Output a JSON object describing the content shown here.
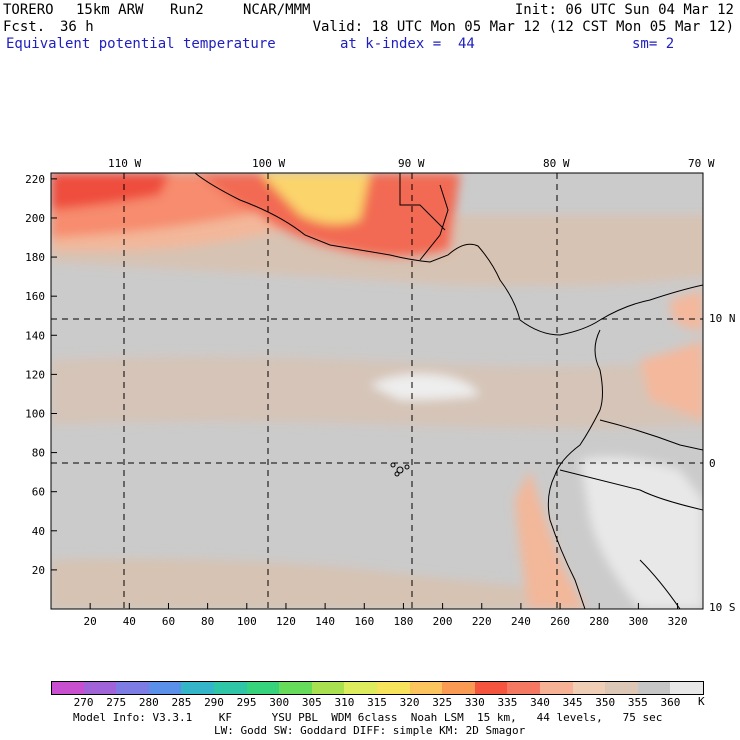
{
  "header": {
    "model": "TORERO",
    "resolution": "15km ARW",
    "run": "Run2",
    "org": "NCAR/MMM",
    "init": "Init: 06 UTC Sun 04 Mar 12",
    "fcst_label": "Fcst.",
    "fcst_hours": "36 h",
    "valid": "Valid: 18 UTC Mon 05 Mar 12 (12 CST Mon 05 Mar 12)"
  },
  "field": {
    "name": "Equivalent potential temperature",
    "level": "at k-index =  44",
    "smoothing": "sm= 2"
  },
  "map": {
    "lon_labels": [
      "110 W",
      "100 W",
      "90 W",
      "80 W",
      "70 W"
    ],
    "lat_labels": [
      "10 N",
      "0",
      "10 S"
    ],
    "x_ticks": [
      "20",
      "40",
      "60",
      "80",
      "100",
      "120",
      "140",
      "160",
      "180",
      "200",
      "220",
      "240",
      "260",
      "280",
      "300",
      "320"
    ],
    "y_ticks": [
      "220",
      "200",
      "180",
      "160",
      "140",
      "120",
      "100",
      "80",
      "60",
      "40",
      "20"
    ]
  },
  "colorbar": {
    "levels": [
      "270",
      "275",
      "280",
      "285",
      "290",
      "295",
      "300",
      "305",
      "310",
      "315",
      "320",
      "325",
      "330",
      "335",
      "340",
      "345",
      "350",
      "355",
      "360"
    ],
    "unit": "K",
    "colors": [
      "#c84fcf",
      "#a064d8",
      "#7c7ce4",
      "#5a90ea",
      "#35b6c8",
      "#2ec6a6",
      "#36d27c",
      "#66dc5a",
      "#a8e050",
      "#dcec5c",
      "#f8e45c",
      "#fcc45c",
      "#fb9a52",
      "#f5543e",
      "#f57863",
      "#f7b195",
      "#f0cdb5",
      "#dcc7b6",
      "#c6c6c6",
      "#e8e8e8"
    ]
  },
  "footer": {
    "line1": "Model Info: V3.3.1    KF      YSU PBL  WDM 6class  Noah LSM  15 km,   44 levels,   75 sec",
    "line2": "LW: Godd SW: Goddard DIFF: simple KM: 2D Smagor"
  }
}
